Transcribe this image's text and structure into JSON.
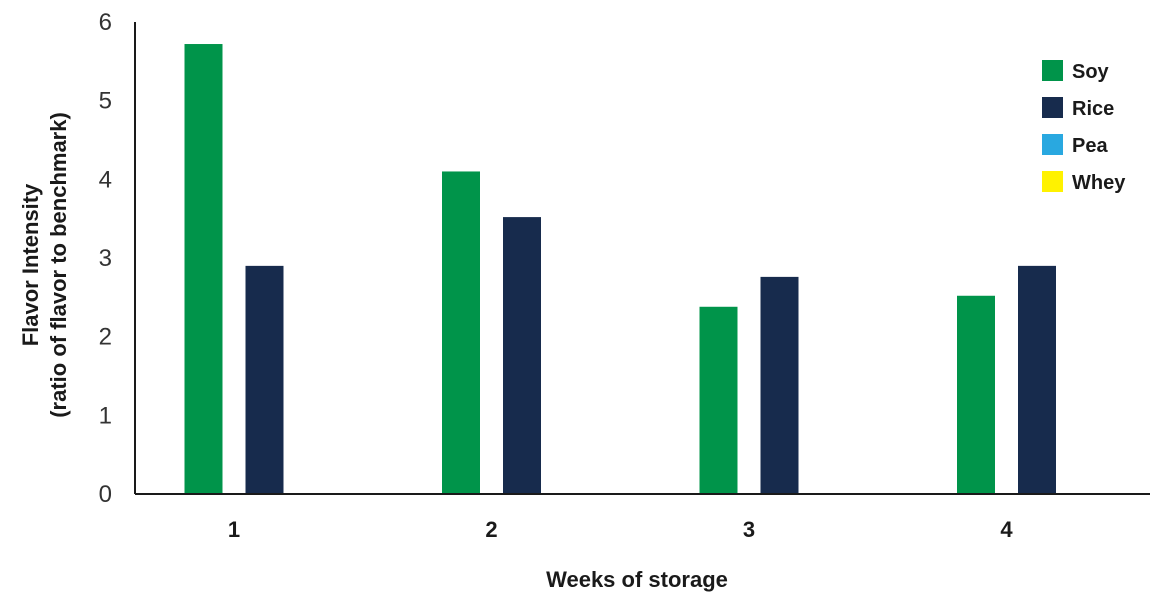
{
  "chart_data": {
    "type": "bar",
    "categories": [
      "1",
      "2",
      "3",
      "4"
    ],
    "series": [
      {
        "name": "Soy",
        "color": "#00944a",
        "values": [
          5.72,
          4.1,
          2.38,
          2.52
        ]
      },
      {
        "name": "Rice",
        "color": "#172b4d",
        "values": [
          2.9,
          3.52,
          2.76,
          2.9
        ]
      },
      {
        "name": "Pea",
        "color": "#29a8e0",
        "values": [
          null,
          null,
          null,
          null
        ]
      },
      {
        "name": "Whey",
        "color": "#fff200",
        "values": [
          null,
          null,
          null,
          null
        ]
      }
    ],
    "xlabel": "Weeks of storage",
    "ylabel_line1": "Flavor Intensity",
    "ylabel_line2": "(ratio of flavor to benchmark)",
    "ylim": [
      0,
      6
    ],
    "yticks": [
      "0",
      "1",
      "2",
      "3",
      "4",
      "5",
      "6"
    ],
    "grid": false,
    "legend_position": "top-right"
  }
}
